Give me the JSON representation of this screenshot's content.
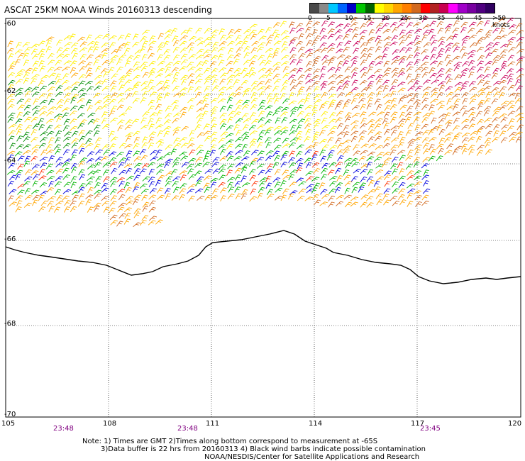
{
  "title": "ASCAT 25KM NOAA Winds 20160313 descending",
  "legend": {
    "labels": [
      "0",
      "5",
      "10",
      "15",
      "20",
      "25",
      "30",
      "35",
      "40",
      "45",
      ">50 knots"
    ],
    "colors": [
      "#4a4a4a",
      "#8a8a8a",
      "#00c8ff",
      "#0064ff",
      "#0000c8",
      "#00c800",
      "#006400",
      "#ffff00",
      "#ffd700",
      "#ffa500",
      "#ff7f00",
      "#d2691e",
      "#ff0000",
      "#b22222",
      "#c80050",
      "#ff00ff",
      "#a000c8",
      "#7800a0",
      "#500080",
      "#300060"
    ]
  },
  "lat_labels": [
    "-60",
    "-62",
    "-64",
    "-66",
    "-68",
    "-70"
  ],
  "lon_labels": [
    "105",
    "108",
    "111",
    "114",
    "117",
    "120"
  ],
  "time_labels": [
    "23:48",
    "23:48",
    "23:45"
  ],
  "notes": {
    "line1": "Note: 1) Times are GMT 2)Times along bottom correspond to measurement at -65S",
    "line2": "3)Data buffer is 22 hrs from 20160313 4) Black wind barbs indicate possible contamination",
    "line3": "NOAA/NESDIS/Center for Satellite Applications and Research"
  }
}
